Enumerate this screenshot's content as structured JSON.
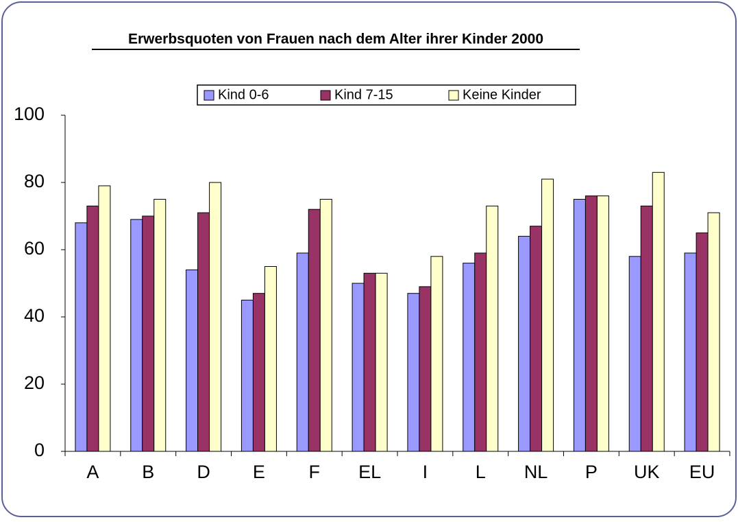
{
  "chart_data": {
    "type": "bar",
    "title": "Erwerbsquoten von Frauen nach dem Alter ihrer Kinder 2000",
    "categories": [
      "A",
      "B",
      "D",
      "E",
      "F",
      "EL",
      "I",
      "L",
      "NL",
      "P",
      "UK",
      "EU"
    ],
    "series": [
      {
        "name": "Kind 0-6",
        "color": "#9999ff",
        "values": [
          68,
          69,
          54,
          45,
          59,
          50,
          47,
          56,
          64,
          75,
          58,
          59
        ]
      },
      {
        "name": "Kind 7-15",
        "color": "#993366",
        "values": [
          73,
          70,
          71,
          47,
          72,
          53,
          49,
          59,
          67,
          76,
          73,
          65
        ]
      },
      {
        "name": "Keine Kinder",
        "color": "#ffffcc",
        "values": [
          79,
          75,
          80,
          55,
          75,
          53,
          58,
          73,
          81,
          76,
          83,
          71
        ]
      }
    ],
    "ylim": [
      0,
      100
    ],
    "yticks": [
      0,
      20,
      40,
      60,
      80,
      100
    ],
    "legend": "top"
  }
}
